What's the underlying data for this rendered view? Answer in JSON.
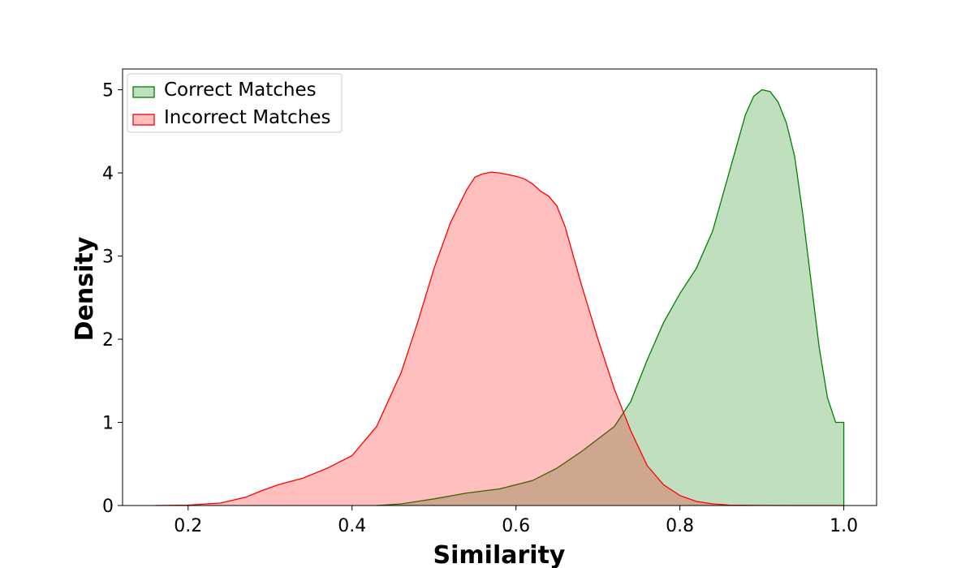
{
  "chart_data": {
    "type": "area",
    "xlabel": "Similarity",
    "ylabel": "Density",
    "xlim": [
      0.12,
      1.04
    ],
    "ylim": [
      0,
      5.25
    ],
    "xticks": [
      0.2,
      0.4,
      0.6,
      0.8,
      1.0
    ],
    "xtick_labels": [
      "0.2",
      "0.4",
      "0.6",
      "0.8",
      "1.0"
    ],
    "yticks": [
      0,
      1,
      2,
      3,
      4,
      5
    ],
    "ytick_labels": [
      "0",
      "1",
      "2",
      "3",
      "4",
      "5"
    ],
    "grid": false,
    "legend_position": "top-left",
    "series": [
      {
        "name": "Correct Matches",
        "color": "#008000",
        "fill": "#c1e0c1",
        "x": [
          0.43,
          0.46,
          0.5,
          0.54,
          0.58,
          0.62,
          0.65,
          0.68,
          0.7,
          0.72,
          0.74,
          0.76,
          0.78,
          0.8,
          0.82,
          0.84,
          0.86,
          0.88,
          0.89,
          0.9,
          0.91,
          0.92,
          0.93,
          0.94,
          0.95,
          0.96,
          0.97,
          0.98,
          0.99,
          1.0,
          1.0
        ],
        "y": [
          0,
          0.02,
          0.08,
          0.15,
          0.2,
          0.3,
          0.45,
          0.65,
          0.8,
          0.95,
          1.25,
          1.75,
          2.2,
          2.55,
          2.85,
          3.3,
          4.0,
          4.7,
          4.92,
          5.0,
          4.98,
          4.85,
          4.6,
          4.2,
          3.5,
          2.7,
          1.9,
          1.3,
          1.0,
          1.0,
          0
        ]
      },
      {
        "name": "Incorrect Matches",
        "color": "#ff0000",
        "fill": "#ffbdbd",
        "x": [
          0.16,
          0.2,
          0.24,
          0.27,
          0.29,
          0.31,
          0.34,
          0.37,
          0.4,
          0.43,
          0.46,
          0.48,
          0.5,
          0.52,
          0.54,
          0.55,
          0.56,
          0.57,
          0.58,
          0.59,
          0.6,
          0.61,
          0.62,
          0.63,
          0.64,
          0.65,
          0.66,
          0.68,
          0.7,
          0.72,
          0.74,
          0.76,
          0.78,
          0.8,
          0.82,
          0.84,
          0.86,
          0.9,
          0.95,
          1.0
        ],
        "y": [
          0,
          0.005,
          0.03,
          0.1,
          0.18,
          0.25,
          0.33,
          0.45,
          0.6,
          0.95,
          1.6,
          2.2,
          2.85,
          3.4,
          3.8,
          3.95,
          3.99,
          4.01,
          4.0,
          3.98,
          3.96,
          3.93,
          3.87,
          3.78,
          3.72,
          3.6,
          3.35,
          2.65,
          2.0,
          1.4,
          0.9,
          0.48,
          0.25,
          0.12,
          0.05,
          0.02,
          0.005,
          0.001,
          0,
          0
        ]
      }
    ]
  }
}
